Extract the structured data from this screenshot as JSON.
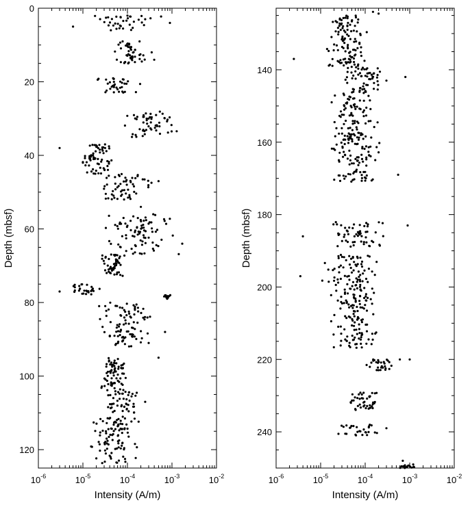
{
  "chart_data": [
    {
      "type": "scatter",
      "xlabel": "Intensity (A/m)",
      "ylabel": "Depth (mbsf)",
      "x_scale": "log",
      "xlim": [
        1e-06,
        0.01
      ],
      "ylim": [
        0,
        125
      ],
      "y_inverted": true,
      "x_tick_labels": [
        {
          "base": "10",
          "exp": "-6"
        },
        {
          "base": "10",
          "exp": "-5"
        },
        {
          "base": "10",
          "exp": "-4"
        },
        {
          "base": "10",
          "exp": "-3"
        },
        {
          "base": "10",
          "exp": "-2"
        }
      ],
      "y_tick_labels": [
        "0",
        "20",
        "40",
        "60",
        "80",
        "100",
        "120"
      ],
      "series": [
        {
          "marker": "dot",
          "color": "#000000",
          "depth_ranges": [
            [
              2,
              6,
              1e-05,
              0.0006
            ],
            [
              9,
              15,
              4e-05,
              0.0003
            ],
            [
              19,
              23,
              2e-05,
              0.0002
            ],
            [
              28,
              35,
              6e-05,
              0.0015
            ],
            [
              37,
              45,
              8e-06,
              5e-05
            ],
            [
              45,
              52,
              2e-05,
              0.0004
            ],
            [
              56,
              67,
              3e-05,
              0.0015
            ],
            [
              67,
              73,
              2.5e-05,
              0.0001
            ],
            [
              75,
              78,
              5e-06,
              3e-05
            ],
            [
              78,
              79,
              0.0006,
              0.001
            ],
            [
              80,
              92,
              2e-05,
              0.0004
            ],
            [
              95,
              104,
              2.5e-05,
              0.0001
            ],
            [
              104,
              110,
              3e-05,
              0.0002
            ],
            [
              111,
              124,
              1.2e-05,
              0.0002
            ]
          ],
          "points": [
            [
              0.0001,
              2
            ],
            [
              0.00025,
              3
            ],
            [
              0.0009,
              4
            ],
            [
              6e-06,
              5
            ],
            [
              0.00035,
              12
            ],
            [
              0.0004,
              14
            ],
            [
              3e-06,
              38
            ],
            [
              1e-05,
              42
            ],
            [
              0.0005,
              47
            ],
            [
              0.0002,
              54
            ],
            [
              0.00038,
              56
            ],
            [
              0.0017,
              64
            ],
            [
              3e-06,
              77
            ],
            [
              0.0007,
              88
            ],
            [
              0.0003,
              91
            ],
            [
              0.0005,
              95
            ],
            [
              0.00025,
              107
            ]
          ]
        }
      ]
    },
    {
      "type": "scatter",
      "xlabel": "Intensity (A/m)",
      "ylabel": "Depth (mbsf)",
      "x_scale": "log",
      "xlim": [
        1e-06,
        0.01
      ],
      "ylim": [
        123,
        250
      ],
      "y_inverted": true,
      "x_tick_labels": [
        {
          "base": "10",
          "exp": "-6"
        },
        {
          "base": "10",
          "exp": "-5"
        },
        {
          "base": "10",
          "exp": "-4"
        },
        {
          "base": "10",
          "exp": "-3"
        },
        {
          "base": "10",
          "exp": "-2"
        }
      ],
      "y_tick_labels": [
        "140",
        "160",
        "180",
        "200",
        "220",
        "240"
      ],
      "series": [
        {
          "marker": "dot",
          "color": "#000000",
          "depth_ranges": [
            [
              125,
              128,
              1.5e-05,
              0.0001
            ],
            [
              128,
              139,
              1.2e-05,
              0.00012
            ],
            [
              139,
              146,
              3e-05,
              0.0003
            ],
            [
              146,
              160,
              1.5e-05,
              0.0002
            ],
            [
              160,
              171,
              1.5e-05,
              0.00025
            ],
            [
              182,
              189,
              1e-05,
              0.0004
            ],
            [
              191,
              199,
              1e-05,
              0.0003
            ],
            [
              199,
              217,
              1.5e-05,
              0.0002
            ],
            [
              220,
              223,
              0.0001,
              0.0004
            ],
            [
              229,
              234,
              3e-05,
              0.0003
            ],
            [
              238,
              241,
              2e-05,
              0.0002
            ],
            [
              249,
              250,
              0.0005,
              0.0015
            ]
          ],
          "points": [
            [
              0.00015,
              124
            ],
            [
              0.0002,
              124.5
            ],
            [
              2.5e-06,
              137
            ],
            [
              0.0008,
              142
            ],
            [
              0.0003,
              143
            ],
            [
              0.00055,
              169
            ],
            [
              0.0009,
              183
            ],
            [
              4e-06,
              186
            ],
            [
              3.5e-06,
              197
            ],
            [
              0.001,
              220
            ],
            [
              0.0006,
              220
            ],
            [
              0.0003,
              239
            ],
            [
              0.0007,
              248
            ],
            [
              0.0012,
              249
            ]
          ]
        }
      ]
    }
  ]
}
